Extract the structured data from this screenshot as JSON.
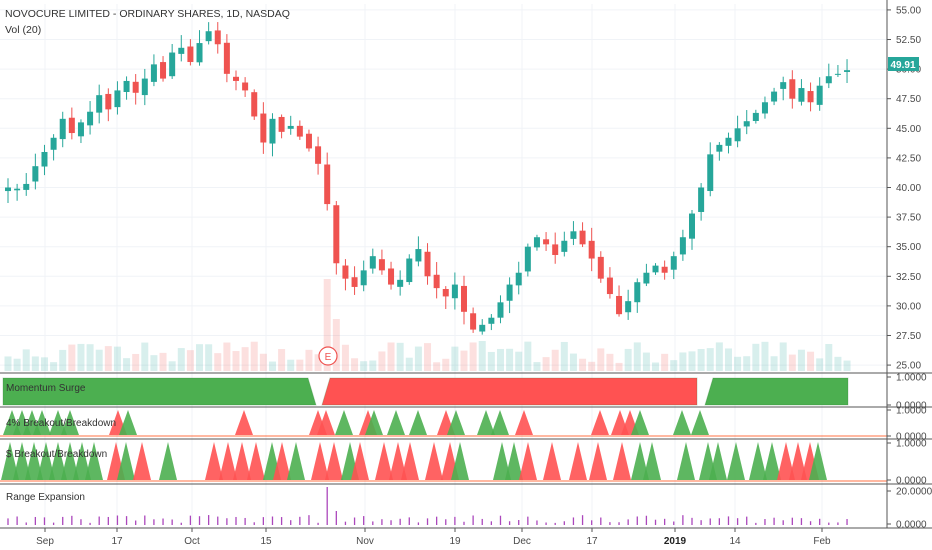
{
  "header": {
    "title": "NOVOCURE LIMITED - ORDINARY SHARES, 1D, NASDAQ",
    "volume_label": "Vol (20)"
  },
  "earnings_marker": "E",
  "last_price_tag": "49.91",
  "colors": {
    "up": "#26a69a",
    "down": "#ef5350",
    "momentum_up": "#4caf50",
    "momentum_down": "#ff5252",
    "range_bar": "#ab47bc",
    "price_tag": "#26a69a",
    "axis_line": "#555555"
  },
  "chart_data": [
    {
      "type": "candlestick",
      "title": "NOVOCURE LIMITED - ORDINARY SHARES, 1D, NASDAQ",
      "ylim": [
        24.5,
        55.5
      ],
      "yticks": [
        "55.00",
        "52.50",
        "50.00",
        "47.50",
        "45.00",
        "42.50",
        "40.00",
        "37.50",
        "35.00",
        "32.50",
        "30.00",
        "27.50",
        "25.00"
      ],
      "x_ticks": [
        "Sep",
        "17",
        "Oct",
        "15",
        "Nov",
        "19",
        "Dec",
        "17",
        "2019",
        "14",
        "Feb"
      ],
      "close_path": [
        40.0,
        39.9,
        40.3,
        41.8,
        43.0,
        44.2,
        45.8,
        44.6,
        45.5,
        46.4,
        47.8,
        46.6,
        48.2,
        49.0,
        48.0,
        49.2,
        50.4,
        49.2,
        51.4,
        51.8,
        50.6,
        52.2,
        53.2,
        52.1,
        49.6,
        49.0,
        48.2,
        46.0,
        43.8,
        45.8,
        44.7,
        45.2,
        44.3,
        43.3,
        42.0,
        38.6,
        33.6,
        32.3,
        31.6,
        33.0,
        34.2,
        33.0,
        31.8,
        32.2,
        34.0,
        34.8,
        32.5,
        31.5,
        30.8,
        31.8,
        29.5,
        28.0,
        28.4,
        29.0,
        30.3,
        31.8,
        32.8,
        35.0,
        35.8,
        35.2,
        34.3,
        35.5,
        36.3,
        35.2,
        34.0,
        32.3,
        31.0,
        29.3,
        30.4,
        32.0,
        32.8,
        33.4,
        32.8,
        34.2,
        35.8,
        37.8,
        40.0,
        42.8,
        43.6,
        44.2,
        45.0,
        45.6,
        46.3,
        47.2,
        48.1,
        48.9,
        47.5,
        48.4,
        47.2,
        48.6,
        49.4,
        49.6,
        49.91
      ],
      "last_price": 49.91,
      "events": [
        {
          "label": "E",
          "near": "Oct 24"
        }
      ]
    },
    {
      "type": "bar",
      "title": "Vol (20)"
    },
    {
      "type": "area",
      "title": "Momentum Surge",
      "yticks": [
        "1.0000",
        "0.0000"
      ],
      "segments": [
        {
          "state": "up",
          "from": "Aug 27",
          "to": "Oct 23"
        },
        {
          "state": "down",
          "from": "Oct 24",
          "to": "Jan 08"
        },
        {
          "state": "up",
          "from": "Jan 09",
          "to": "Feb 05"
        }
      ]
    },
    {
      "type": "area",
      "title": "4% Breakout/Breakdown",
      "yticks": [
        "1.0000",
        "0.0000"
      ]
    },
    {
      "type": "area",
      "title": "$ Breakout/Breakdown",
      "yticks": [
        "1.0000",
        "0.0000"
      ]
    },
    {
      "type": "bar",
      "title": "Range Expansion",
      "yticks": [
        "20.0000",
        "0.0000"
      ]
    }
  ]
}
